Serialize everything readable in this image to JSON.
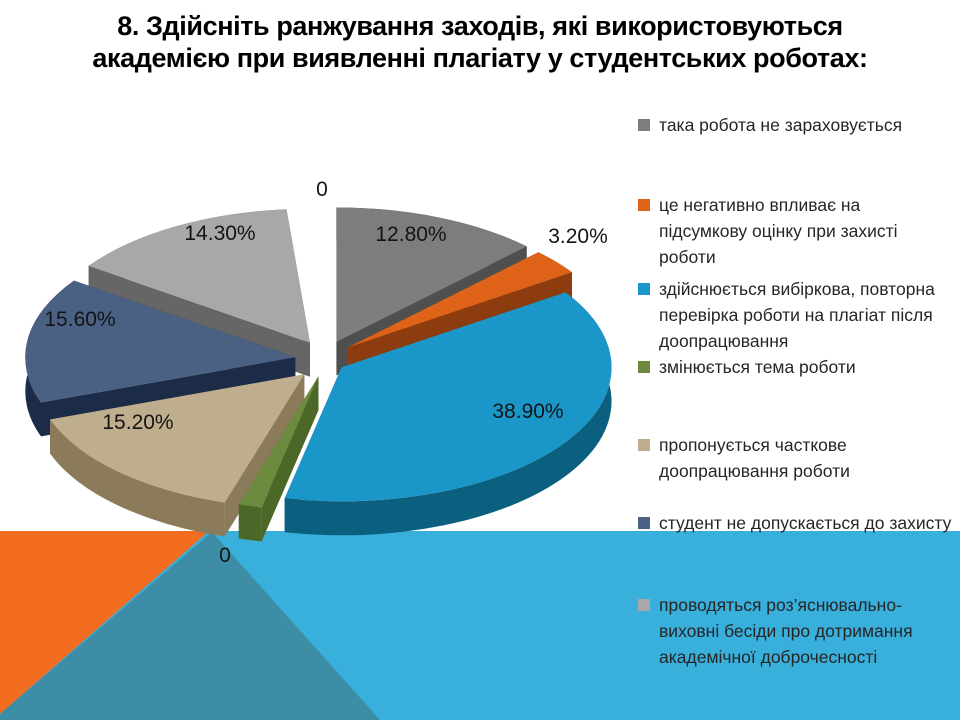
{
  "title": {
    "lines": [
      "8. Здійсніть ранжування заходів, які використовуються",
      "академією при виявленні плагіату у студентських роботах:"
    ]
  },
  "chart_data": {
    "type": "pie",
    "style": "3d-exploded-pie",
    "legend_position": "right",
    "slices": [
      {
        "id": "not-counted",
        "label": "12.80%",
        "value": 12.8,
        "color": "#7D7D7D",
        "side": "#4F4F4F",
        "legend": "така робота не зараховується"
      },
      {
        "id": "affects-grade",
        "label": "3.20%",
        "value": 3.2,
        "color": "#DE6218",
        "side": "#8C3C0F",
        "legend": "це негативно впливає на підсумкову оцінку при захисті роботи"
      },
      {
        "id": "recheck",
        "label": "38.90%",
        "value": 38.9,
        "color": "#1B96C8",
        "side": "#0B607F",
        "legend": "здійснюється вибіркова, повторна перевірка роботи на плагіат після доопрацювання"
      },
      {
        "id": "topic-change",
        "label": "0",
        "value": 0,
        "color": "#6C8B3F",
        "side": "#4C6828",
        "legend": "змінюється тема роботи"
      },
      {
        "id": "partial-rework",
        "label": "15.20%",
        "value": 15.2,
        "color": "#BFAE8D",
        "side": "#8C7B5B",
        "legend": "пропонується часткове доопрацювання роботи"
      },
      {
        "id": "no-defense",
        "label": "15.60%",
        "value": 15.6,
        "color": "#4A6183",
        "side": "#1C2B47",
        "legend": "студент не допускається до захисту"
      },
      {
        "id": "talks",
        "label": "14.30%",
        "value": 14.3,
        "color": "#A8A8A8",
        "side": "#666666",
        "legend": "проводяться роз’яснювально-виховні бесіди про дотримання академічної доброчесності"
      },
      {
        "id": "extra-zero",
        "label": "0",
        "value": 0,
        "color": null,
        "side": null,
        "legend": null,
        "hidden": true
      }
    ],
    "background_artifact": {
      "band_color": "#39AFDC",
      "orange_triangle": "#F26D1F",
      "teal_triangle": "#3E8DA6"
    }
  }
}
